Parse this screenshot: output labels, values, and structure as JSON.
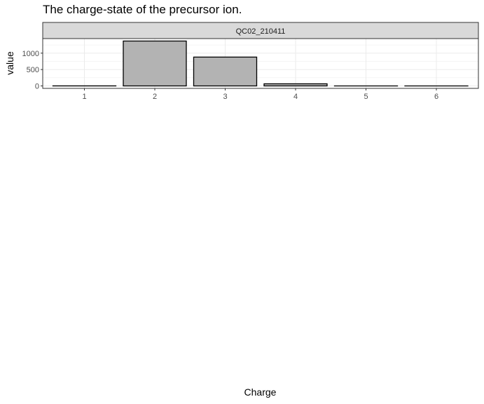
{
  "chart_data": {
    "type": "bar",
    "title": "The charge-state of the precursor ion.",
    "facet_label": "QC02_210411",
    "xlabel": "Charge",
    "ylabel": "value",
    "categories": [
      "1",
      "2",
      "3",
      "4",
      "5",
      "6"
    ],
    "values": [
      2,
      1370,
      880,
      65,
      0,
      0
    ],
    "ylim": [
      0,
      1370
    ],
    "yticks": [
      0,
      500,
      1000
    ],
    "grid": true,
    "bar_fill": "#b3b3b3",
    "bar_stroke": "#000000",
    "strip_fill": "#d9d9d9",
    "grid_color": "#ebebeb"
  }
}
